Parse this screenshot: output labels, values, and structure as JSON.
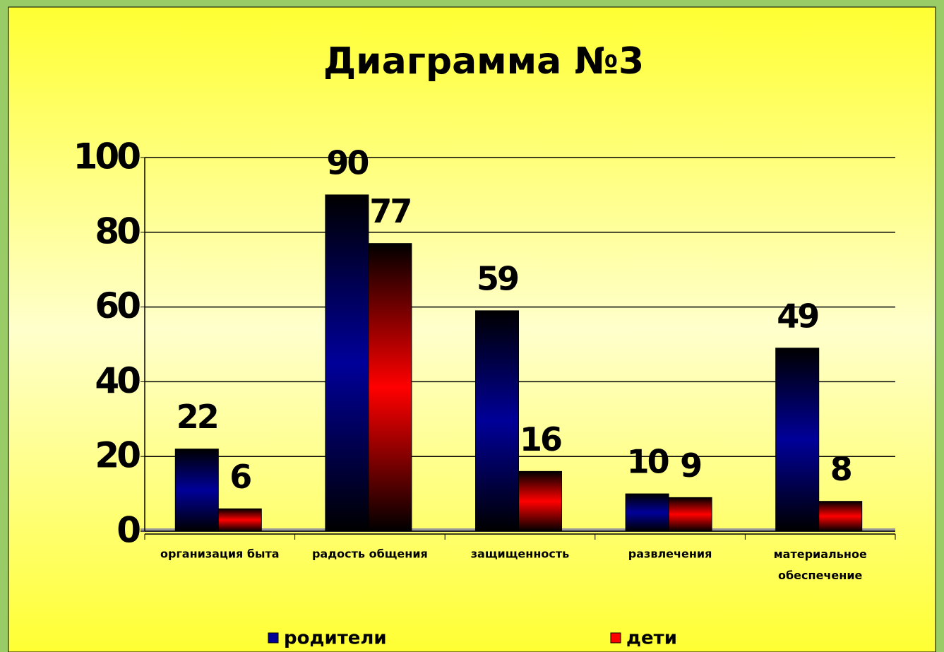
{
  "chart_data": {
    "type": "bar",
    "title": "Диаграмма №3",
    "categories": [
      "организация быта",
      "радость общения",
      "защищенность",
      "развлечения",
      "материальное обеспечение"
    ],
    "series": [
      {
        "name": "родители",
        "color": "#000099",
        "values": [
          22,
          90,
          59,
          10,
          49
        ]
      },
      {
        "name": "дети",
        "color": "#ff0000",
        "values": [
          6,
          77,
          16,
          9,
          8
        ]
      }
    ],
    "ylim": [
      0,
      100
    ],
    "yticks": [
      0,
      20,
      40,
      60,
      80,
      100
    ],
    "grid": true,
    "legend": "bottom"
  }
}
